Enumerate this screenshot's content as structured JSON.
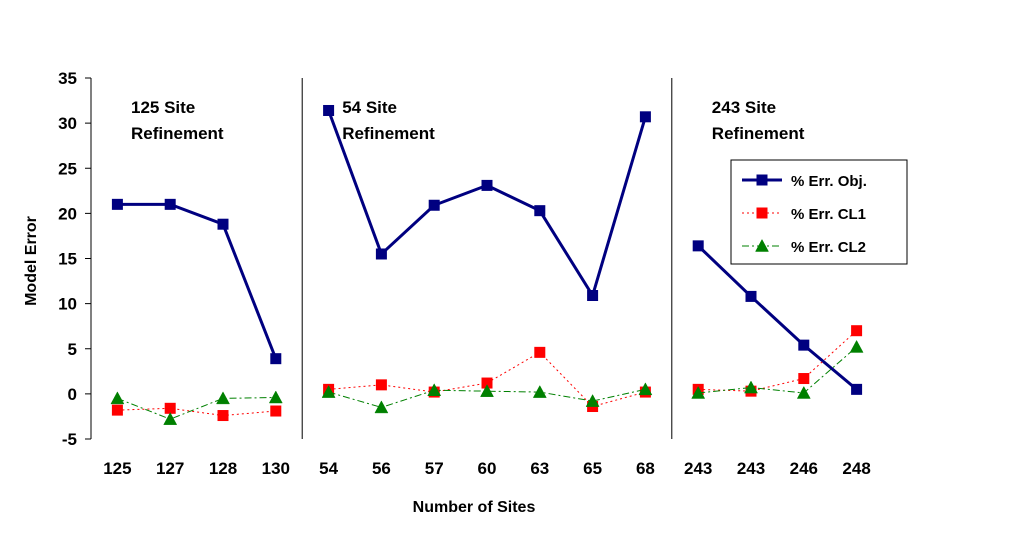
{
  "chart_data": {
    "type": "line",
    "xlabel": "Number of Sites",
    "ylabel": "Model Error",
    "ylim": [
      -5,
      35
    ],
    "yticks": [
      -5,
      0,
      5,
      10,
      15,
      20,
      25,
      30,
      35
    ],
    "categories": [
      "125",
      "127",
      "128",
      "130",
      "54",
      "56",
      "57",
      "60",
      "63",
      "65",
      "68",
      "243",
      "243",
      "246",
      "248"
    ],
    "regions": [
      {
        "line1": "125 Site",
        "line2": "Refinement",
        "start": 0,
        "end": 3
      },
      {
        "line1": "54 Site",
        "line2": "Refinement",
        "start": 4,
        "end": 10
      },
      {
        "line1": "243 Site",
        "line2": "Refinement",
        "start": 11,
        "end": 14
      }
    ],
    "series": [
      {
        "name": "% Err. Obj.",
        "color": "#000080",
        "marker": "square",
        "line": "solid",
        "values": [
          21.0,
          21.0,
          18.8,
          3.9,
          31.4,
          15.5,
          20.9,
          23.1,
          20.3,
          10.9,
          30.7,
          16.4,
          10.8,
          5.4,
          0.5
        ]
      },
      {
        "name": "% Err. CL1",
        "color": "#ff0000",
        "marker": "square",
        "line": "dotted",
        "values": [
          -1.8,
          -1.6,
          -2.4,
          -1.9,
          0.5,
          1.0,
          0.2,
          1.2,
          4.6,
          -1.4,
          0.2,
          0.5,
          0.3,
          1.7,
          7.0
        ]
      },
      {
        "name": "% Err. CL2",
        "color": "#008000",
        "marker": "triangle",
        "line": "dashdot",
        "values": [
          -0.5,
          -2.8,
          -0.5,
          -0.4,
          0.2,
          -1.5,
          0.4,
          0.3,
          0.2,
          -0.8,
          0.5,
          0.1,
          0.7,
          0.1,
          5.2
        ]
      }
    ],
    "grid": false,
    "legend_position": "right"
  }
}
